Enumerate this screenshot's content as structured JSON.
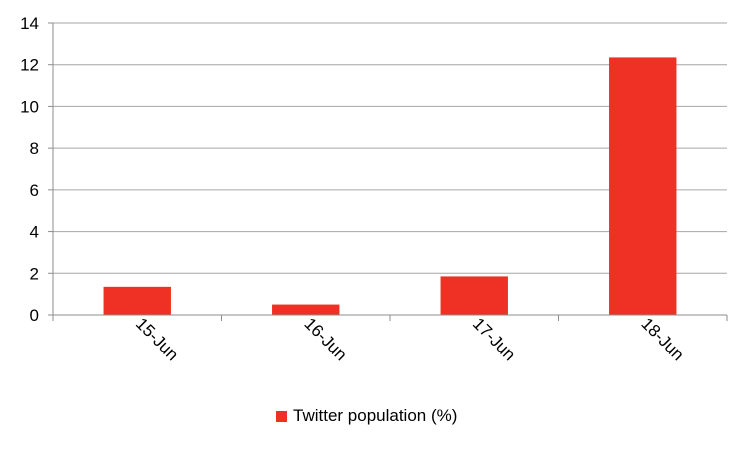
{
  "chart_data": {
    "type": "bar",
    "title": "",
    "xlabel": "",
    "ylabel": "",
    "categories": [
      "15-Jun",
      "16-Jun",
      "17-Jun",
      "18-Jun"
    ],
    "series": [
      {
        "name": "Twitter population (%)",
        "values": [
          1.35,
          0.5,
          1.85,
          12.35
        ],
        "color": "#ee3124"
      }
    ],
    "ylim": [
      0,
      14
    ],
    "yticks": [
      0,
      2,
      4,
      6,
      8,
      10,
      12,
      14
    ],
    "grid": true,
    "legend_position": "bottom"
  }
}
